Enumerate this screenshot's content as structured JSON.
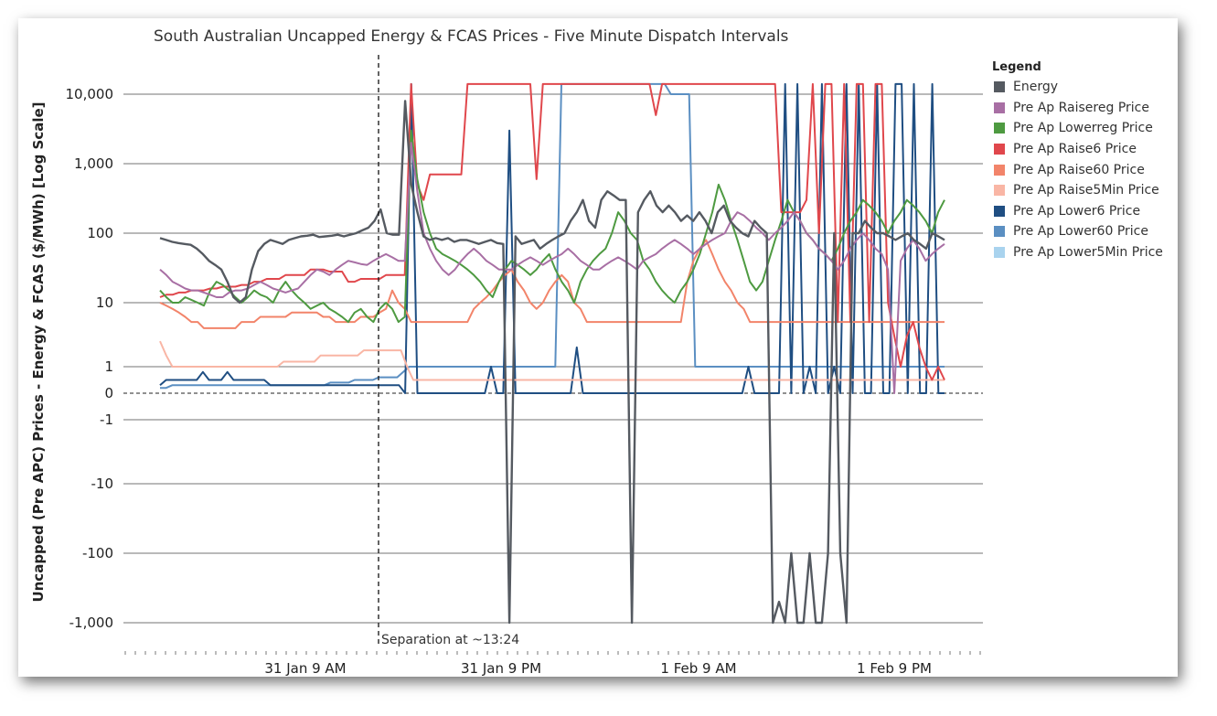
{
  "chart_data": {
    "type": "line",
    "title": "South Australian Uncapped Energy & FCAS Prices - Five Minute Dispatch Intervals",
    "ylabel": "Uncapped (Pre APC) Prices - Energy & FCAS ($/MWh) [Log Scale]",
    "y_scale": "symmetric log",
    "y_ticks": [
      "10,000",
      "1,000",
      "100",
      "10",
      "1",
      "0",
      "-1",
      "-10",
      "-100",
      "-1,000"
    ],
    "x_ticks": [
      "31 Jan 9 AM",
      "31 Jan 9 PM",
      "1 Feb 9 AM",
      "1 Feb 9 PM"
    ],
    "annotation": "Separation at ~13:24",
    "legend_title": "Legend",
    "grid": "horizontal",
    "legend_position": "right",
    "series": [
      {
        "name": "Energy",
        "color": "#555a61",
        "values": [
          85,
          80,
          75,
          72,
          70,
          68,
          60,
          50,
          40,
          35,
          30,
          20,
          12,
          10,
          12,
          30,
          55,
          70,
          80,
          75,
          70,
          80,
          85,
          90,
          92,
          95,
          88,
          90,
          92,
          95,
          90,
          95,
          100,
          110,
          120,
          150,
          220,
          100,
          95,
          95,
          8000,
          500,
          200,
          90,
          80,
          85,
          80,
          85,
          75,
          80,
          80,
          75,
          70,
          75,
          80,
          72,
          70,
          -1000,
          90,
          70,
          75,
          80,
          60,
          70,
          80,
          90,
          100,
          150,
          200,
          300,
          150,
          120,
          300,
          400,
          350,
          300,
          300,
          -1000,
          200,
          300,
          400,
          250,
          200,
          250,
          200,
          150,
          180,
          150,
          200,
          150,
          100,
          200,
          250,
          150,
          120,
          100,
          90,
          150,
          120,
          100,
          -1000,
          -500,
          -1000,
          -100,
          -1000,
          -1000,
          -100,
          -1000,
          -1000,
          -100,
          100,
          -100,
          -1000,
          100,
          100,
          150,
          120,
          100,
          100,
          90,
          80,
          90,
          100,
          80,
          70,
          60,
          100,
          90,
          80
        ]
      },
      {
        "name": "Pre Ap Raisereg Price",
        "color": "#a86fa4",
        "values": [
          30,
          25,
          20,
          18,
          16,
          15,
          15,
          14,
          13,
          12,
          12,
          14,
          15,
          15,
          16,
          18,
          20,
          18,
          16,
          15,
          14,
          15,
          16,
          20,
          25,
          30,
          28,
          25,
          30,
          35,
          40,
          38,
          36,
          35,
          40,
          45,
          50,
          45,
          40,
          40,
          2000,
          400,
          100,
          60,
          40,
          30,
          25,
          30,
          40,
          50,
          60,
          50,
          40,
          35,
          30,
          30,
          30,
          35,
          40,
          45,
          40,
          35,
          40,
          45,
          50,
          60,
          50,
          40,
          35,
          30,
          30,
          35,
          40,
          45,
          40,
          35,
          30,
          40,
          45,
          50,
          60,
          70,
          80,
          70,
          60,
          50,
          60,
          70,
          80,
          90,
          100,
          150,
          200,
          180,
          150,
          120,
          100,
          80,
          100,
          120,
          150,
          200,
          150,
          100,
          80,
          60,
          50,
          40,
          30,
          40,
          60,
          80,
          100,
          80,
          60,
          50,
          30,
          0,
          40,
          60,
          80,
          60,
          40,
          50,
          60,
          70
        ]
      },
      {
        "name": "Pre Ap Lowerreg Price",
        "color": "#4e9a41",
        "values": [
          15,
          12,
          10,
          10,
          12,
          11,
          10,
          9,
          15,
          20,
          18,
          15,
          12,
          10,
          12,
          15,
          13,
          12,
          10,
          15,
          20,
          15,
          12,
          10,
          8,
          9,
          10,
          8,
          7,
          6,
          5,
          7,
          8,
          6,
          5,
          8,
          10,
          8,
          5,
          6,
          3000,
          600,
          200,
          100,
          60,
          50,
          45,
          40,
          35,
          30,
          25,
          20,
          15,
          12,
          20,
          30,
          40,
          35,
          30,
          25,
          30,
          40,
          50,
          30,
          20,
          15,
          10,
          20,
          30,
          40,
          50,
          60,
          100,
          200,
          150,
          100,
          80,
          40,
          30,
          20,
          15,
          12,
          10,
          15,
          20,
          30,
          50,
          100,
          200,
          500,
          300,
          150,
          80,
          40,
          20,
          15,
          20,
          40,
          80,
          150,
          300,
          200,
          150,
          100,
          80,
          60,
          50,
          40,
          60,
          100,
          150,
          200,
          300,
          250,
          200,
          150,
          100,
          150,
          200,
          300,
          250,
          200,
          150,
          100,
          200,
          300
        ]
      },
      {
        "name": "Pre Ap Raise6 Price",
        "color": "#e0474c",
        "values": [
          12,
          13,
          13,
          14,
          14,
          15,
          15,
          15,
          16,
          16,
          17,
          17,
          17,
          18,
          18,
          20,
          20,
          22,
          22,
          22,
          25,
          25,
          25,
          25,
          30,
          30,
          30,
          28,
          28,
          28,
          20,
          20,
          22,
          22,
          22,
          22,
          25,
          25,
          25,
          25,
          14000,
          500,
          300,
          700,
          700,
          700,
          700,
          700,
          700,
          14000,
          14000,
          14000,
          14000,
          14000,
          14000,
          14000,
          14000,
          14000,
          14000,
          14000,
          600,
          14000,
          14000,
          14000,
          14000,
          14000,
          14000,
          14000,
          14000,
          14000,
          14000,
          14000,
          14000,
          14000,
          14000,
          14000,
          14000,
          14000,
          14000,
          5000,
          14000,
          14000,
          14000,
          14000,
          14000,
          14000,
          14000,
          14000,
          14000,
          14000,
          14000,
          14000,
          14000,
          14000,
          14000,
          14000,
          14000,
          14000,
          14000,
          200,
          200,
          200,
          200,
          300,
          14000,
          100,
          14000,
          14000,
          5,
          14000,
          5,
          14000,
          14000,
          5,
          14000,
          14000,
          10,
          3,
          1,
          3,
          5,
          2,
          1,
          0.5,
          1,
          0.5
        ]
      },
      {
        "name": "Pre Ap Raise60 Price",
        "color": "#f2846a",
        "values": [
          10,
          9,
          8,
          7,
          6,
          5,
          5,
          4,
          4,
          4,
          4,
          4,
          4,
          5,
          5,
          5,
          6,
          6,
          6,
          6,
          6,
          7,
          7,
          7,
          7,
          7,
          6,
          6,
          5,
          5,
          5,
          5,
          6,
          6,
          6,
          7,
          8,
          15,
          10,
          8,
          5,
          5,
          5,
          5,
          5,
          5,
          5,
          5,
          5,
          5,
          8,
          10,
          12,
          15,
          20,
          25,
          30,
          20,
          15,
          10,
          8,
          10,
          15,
          20,
          25,
          20,
          10,
          8,
          5,
          5,
          5,
          5,
          5,
          5,
          5,
          5,
          5,
          5,
          5,
          5,
          5,
          5,
          5,
          5,
          20,
          40,
          60,
          80,
          50,
          30,
          20,
          15,
          10,
          8,
          5,
          5,
          5,
          5,
          5,
          5,
          5,
          5,
          5,
          5,
          5,
          5,
          5,
          5,
          5,
          5,
          5,
          5,
          5,
          5,
          5,
          5,
          5,
          5,
          5,
          5,
          5,
          5,
          5,
          5,
          5,
          5
        ]
      },
      {
        "name": "Pre Ap Raise5Min Price",
        "color": "#f9b6a5",
        "values": [
          2.5,
          1.5,
          1,
          1,
          1,
          1,
          1,
          1,
          1,
          1,
          1,
          1,
          1,
          1,
          1,
          1,
          1,
          1,
          1,
          1,
          1.2,
          1.2,
          1.2,
          1.2,
          1.2,
          1.2,
          1.5,
          1.5,
          1.5,
          1.5,
          1.5,
          1.5,
          1.5,
          1.8,
          1.8,
          1.8,
          1.8,
          1.8,
          1.8,
          1.8,
          1,
          0.5,
          0.5,
          0.5,
          0.5,
          0.5,
          0.5,
          0.5,
          0.5,
          0.5,
          0.5,
          0.5,
          0.5,
          0.5,
          0.5,
          0.5,
          0.5,
          0.5,
          0.5,
          0.5,
          0.5,
          0.5,
          0.5,
          0.5,
          0.5,
          0.5,
          0.5,
          0.5,
          0.5,
          0.5,
          0.5,
          0.5,
          0.5,
          0.5,
          0.5,
          0.5,
          0.5,
          0.5,
          0.5,
          0.5,
          0.5,
          0.5,
          0.5,
          0.5,
          0.5,
          0.5,
          0.5,
          0.5,
          0.5,
          0.5,
          0.5,
          0.5,
          0.5,
          0.5,
          0.5,
          0.5,
          0.5,
          0.5,
          0.5,
          0.5,
          0.5,
          0.5,
          0.5,
          0.5,
          0.5,
          0.5,
          0.5,
          0.5,
          0.5,
          0.5,
          0.5,
          0.5,
          0.5,
          0.5,
          0.5,
          0.5,
          0.5,
          0.5,
          0.5,
          0.5,
          0.5,
          0.5,
          0.5,
          0.5,
          0.5,
          0.5,
          0.5,
          0.5
        ]
      },
      {
        "name": "Pre Ap Lower6 Price",
        "color": "#1f4e82",
        "values": [
          0.3,
          0.5,
          0.5,
          0.5,
          0.5,
          0.5,
          0.5,
          0.8,
          0.5,
          0.5,
          0.5,
          0.8,
          0.5,
          0.5,
          0.5,
          0.5,
          0.5,
          0.5,
          0.3,
          0.3,
          0.3,
          0.3,
          0.3,
          0.3,
          0.3,
          0.3,
          0.3,
          0.3,
          0.3,
          0.3,
          0.3,
          0.3,
          0.3,
          0.3,
          0.3,
          0.3,
          0.3,
          0.3,
          0.3,
          0.3,
          0,
          14000,
          0,
          0,
          0,
          0,
          0,
          0,
          0,
          0,
          0,
          0,
          0,
          0,
          1,
          0,
          0,
          3000,
          0,
          0,
          0,
          0,
          0,
          0,
          0,
          0,
          0,
          0,
          2,
          0,
          0,
          0,
          0,
          0,
          0,
          0,
          0,
          0,
          0,
          0,
          0,
          0,
          0,
          0,
          0,
          0,
          0,
          0,
          0,
          0,
          0,
          0,
          0,
          0,
          0,
          0,
          1,
          0,
          0,
          0,
          0,
          0,
          14000,
          0,
          14000,
          0,
          1,
          0,
          14000,
          0,
          1,
          0,
          14000,
          0,
          14000,
          0,
          0,
          14000,
          0,
          0,
          14000,
          14000,
          0,
          14000,
          0,
          0,
          14000,
          0,
          0
        ]
      },
      {
        "name": "Pre Ap Lower60 Price",
        "color": "#5b8fc2",
        "values": [
          0.2,
          0.2,
          0.3,
          0.3,
          0.3,
          0.3,
          0.3,
          0.3,
          0.3,
          0.3,
          0.3,
          0.3,
          0.3,
          0.3,
          0.3,
          0.3,
          0.3,
          0.3,
          0.3,
          0.3,
          0.3,
          0.3,
          0.3,
          0.3,
          0.3,
          0.3,
          0.3,
          0.3,
          0.4,
          0.4,
          0.4,
          0.4,
          0.5,
          0.5,
          0.5,
          0.5,
          0.6,
          0.6,
          0.6,
          0.6,
          0.8,
          1,
          1,
          1,
          1,
          1,
          1,
          1,
          1,
          1,
          1,
          1,
          1,
          1,
          1,
          1,
          1,
          1,
          1,
          1,
          1,
          1,
          1,
          1,
          1,
          1,
          14000,
          14000,
          14000,
          14000,
          14000,
          14000,
          14000,
          14000,
          14000,
          14000,
          14000,
          14000,
          14000,
          14000,
          14000,
          14000,
          14000,
          14000,
          10000,
          10000,
          10000,
          10000,
          1,
          1,
          1,
          1,
          1,
          1,
          1,
          1,
          1,
          1,
          1,
          1,
          1,
          1,
          1,
          1,
          1,
          1,
          1,
          1,
          1,
          1,
          1,
          1,
          1,
          1,
          1,
          1,
          1,
          1,
          1,
          1,
          1,
          1,
          1,
          1,
          1,
          1,
          1,
          1,
          1,
          1
        ]
      },
      {
        "name": "Pre Ap Lower5Min Price",
        "color": "#a9d3ee",
        "values": [
          0.2,
          0.2,
          0.2,
          0.2,
          0.2,
          0.2,
          0.2,
          0.2,
          0.2,
          0.2,
          0.2,
          0.2,
          0.2,
          0.2,
          0.2,
          0.2,
          0.2,
          0.2,
          0.2,
          0.2,
          0.2,
          0.2,
          0.2,
          0.2,
          0.2,
          0.2,
          0.2,
          0.2,
          0.2,
          0.2,
          0.2,
          0.2,
          0.2,
          0.2,
          0.2,
          0.2,
          0.2,
          0.2,
          0.2,
          0.2,
          0.2,
          0.2,
          0.2,
          0.2,
          0.2,
          0.2,
          0.2,
          0.2,
          0.2,
          0.2,
          0.2,
          0.2,
          0.2,
          0.2,
          0.2,
          0.2,
          0.2,
          0.2,
          0.2,
          0.2,
          0.2,
          0.2,
          0.2,
          0.2,
          0.2,
          0.2,
          0.2,
          0.2,
          0.2,
          0.2,
          0.2,
          0.2,
          0.2,
          0.2,
          0.2,
          0.2,
          0.2,
          0.2,
          0.2,
          0.2,
          0.2,
          0.2,
          0.2,
          0.2,
          0.2,
          0.2,
          0.2,
          0.2,
          0.2,
          0.2,
          0.2,
          0.2,
          0.2,
          0.2,
          0.2,
          0.2,
          0.2,
          0.2,
          0.2,
          0.2,
          0.2,
          0.2,
          0.2,
          0.2,
          0.2,
          0.2,
          0.2,
          0.2,
          0.2,
          0.2,
          0.2,
          0.2,
          0.2,
          0.2,
          0.2,
          0.2,
          0.2,
          0.2,
          0.2,
          0.2,
          0.2,
          0.2,
          0.2,
          0.2,
          0.2,
          0.2
        ]
      }
    ]
  }
}
